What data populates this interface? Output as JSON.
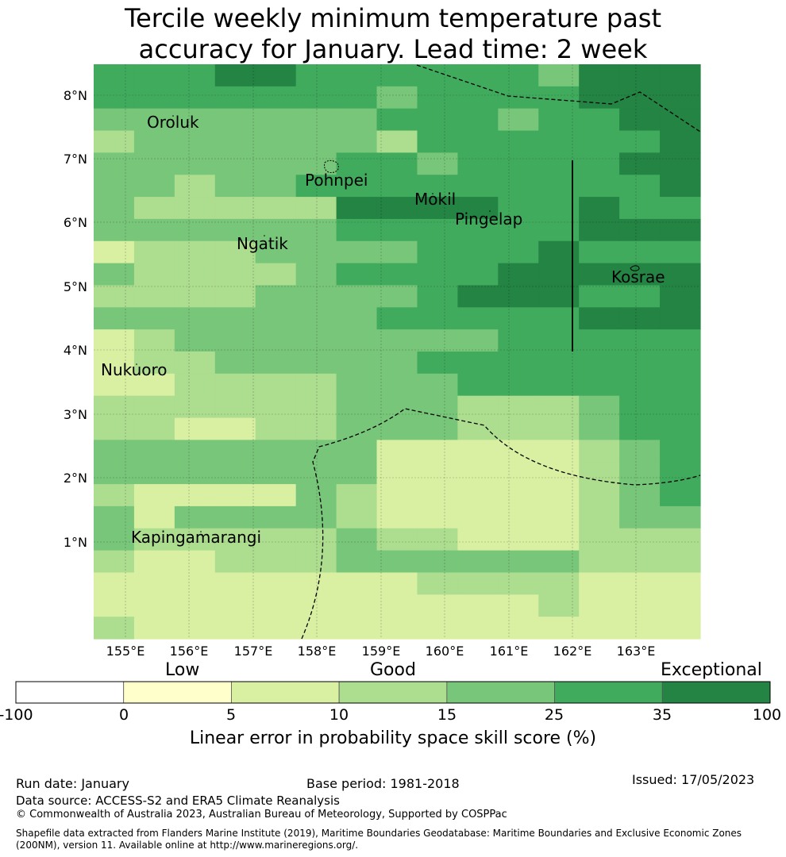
{
  "title_line1": "Tercile weekly minimum temperature past",
  "title_line2": "accuracy for January. Lead time: 2 week",
  "map": {
    "lon_labels": [
      "155°E",
      "156°E",
      "157°E",
      "158°E",
      "159°E",
      "160°E",
      "161°E",
      "162°E",
      "163°E"
    ],
    "lat_labels": [
      "8°N",
      "7°N",
      "6°N",
      "5°N",
      "4°N",
      "3°N",
      "2°N",
      "1°N"
    ],
    "places": [
      {
        "name": "Oroluk"
      },
      {
        "name": "Pohnpei"
      },
      {
        "name": "Mokil"
      },
      {
        "name": "Pingelap"
      },
      {
        "name": "Ngatik"
      },
      {
        "name": "Kosrae"
      },
      {
        "name": "Nukuoro"
      },
      {
        "name": "Kapingamarangi"
      }
    ],
    "grid_classes_rows_north_to_south": [
      "555665555554666",
      "555555545555666",
      "444444455545566",
      "344444435555556",
      "444444554555566",
      "443445555555556",
      "433333666655655",
      "444444555555666",
      "233344445556555",
      "433334555566666",
      "333344445666556",
      "444444455555666",
      "234444444455555",
      "233444445555555",
      "223333444555555",
      "333333444333455",
      "332233444333455",
      "444444422222345",
      "444444422222345",
      "322224322222345",
      "424444322222344",
      "433333433222333",
      "322333444444333",
      "222222223333222",
      "222222222223222",
      "322222222222222"
    ]
  },
  "colorbar": {
    "categories": [
      "Low",
      "Good",
      "Exceptional"
    ],
    "ticks": [
      "-100",
      "0",
      "5",
      "10",
      "15",
      "25",
      "35",
      "100"
    ],
    "colors": [
      "#ffffff",
      "#ffffcc",
      "#d9f0a3",
      "#addd8e",
      "#78c679",
      "#41ab5d",
      "#238443"
    ],
    "label": "Linear error in probability space skill score (%)"
  },
  "footer": {
    "run_date": "Run date: January",
    "base_period": "Base period: 1981-2018",
    "issued": "Issued: 17/05/2023",
    "data_source": "Data source: ACCESS-S2 and ERA5 Climate Reanalysis",
    "copyright": "© Commonwealth of Australia 2023, Australian Bureau of Meteorology, Supported by COSPPac",
    "shapefile_note": "Shapefile data extracted from Flanders Marine Institute (2019), Maritime Boundaries Geodatabase: Maritime Boundaries and Exclusive Economic Zones (200NM), version 11. Available online at http://www.marineregions.org/."
  }
}
